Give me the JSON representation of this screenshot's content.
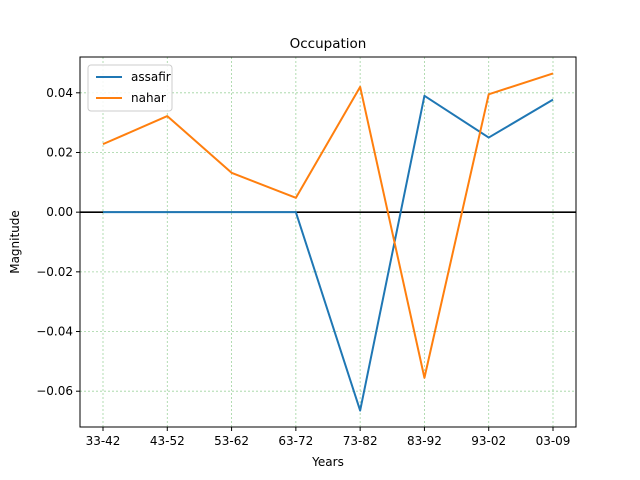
{
  "chart_data": {
    "type": "line",
    "title": "Occupation",
    "xlabel": "Years",
    "ylabel": "Magnitude",
    "categories": [
      "33-42",
      "43-52",
      "53-62",
      "63-72",
      "73-82",
      "83-92",
      "93-02",
      "03-09"
    ],
    "ylim": [
      -0.072,
      0.052
    ],
    "yticks": [
      0.04,
      0.02,
      0.0,
      -0.02,
      -0.04,
      -0.06
    ],
    "ytick_labels": [
      "0.04",
      "0.02",
      "0.00",
      "−0.02",
      "−0.04",
      "−0.06"
    ],
    "grid": true,
    "grid_color": "#2ca02c",
    "zero_line": true,
    "legend_position": "upper-left",
    "series": [
      {
        "name": "assafir",
        "color": "#1f77b4",
        "values": [
          0.0,
          0.0,
          0.0,
          0.0,
          -0.0665,
          0.039,
          0.025,
          0.0377
        ]
      },
      {
        "name": "nahar",
        "color": "#ff7f0e",
        "values": [
          0.0228,
          0.0322,
          0.0132,
          0.0048,
          0.042,
          -0.0555,
          0.0395,
          0.0465
        ]
      }
    ]
  }
}
